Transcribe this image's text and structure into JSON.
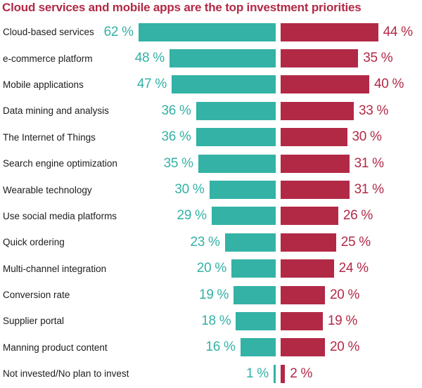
{
  "chart_data": {
    "type": "bar",
    "orientation": "diverging-horizontal",
    "title": "Cloud services and mobile apps are the top investment priorities",
    "value_suffix": " %",
    "grid": false,
    "legend": "none",
    "colors": {
      "left_series": "#33b2a5",
      "right_series": "#b22946",
      "title": "#b22946",
      "category_label": "#1c1c1c"
    },
    "categories": [
      "Cloud-based services",
      "e-commerce platform",
      "Mobile applications",
      "Data mining and analysis",
      "The Internet of Things",
      "Search engine optimization",
      "Wearable technology",
      "Use social media platforms",
      "Quick ordering",
      "Multi-channel integration",
      "Conversion rate",
      "Supplier portal",
      "Manning product content",
      "Not invested/No plan to invest"
    ],
    "series": [
      {
        "name": "left",
        "color": "#33b2a5",
        "values": [
          62,
          48,
          47,
          36,
          36,
          35,
          30,
          29,
          23,
          20,
          19,
          18,
          16,
          1
        ]
      },
      {
        "name": "right",
        "color": "#b22946",
        "values": [
          44,
          35,
          40,
          33,
          30,
          31,
          31,
          26,
          25,
          24,
          20,
          19,
          20,
          2
        ]
      }
    ],
    "value_range_percent": [
      0,
      62
    ]
  }
}
